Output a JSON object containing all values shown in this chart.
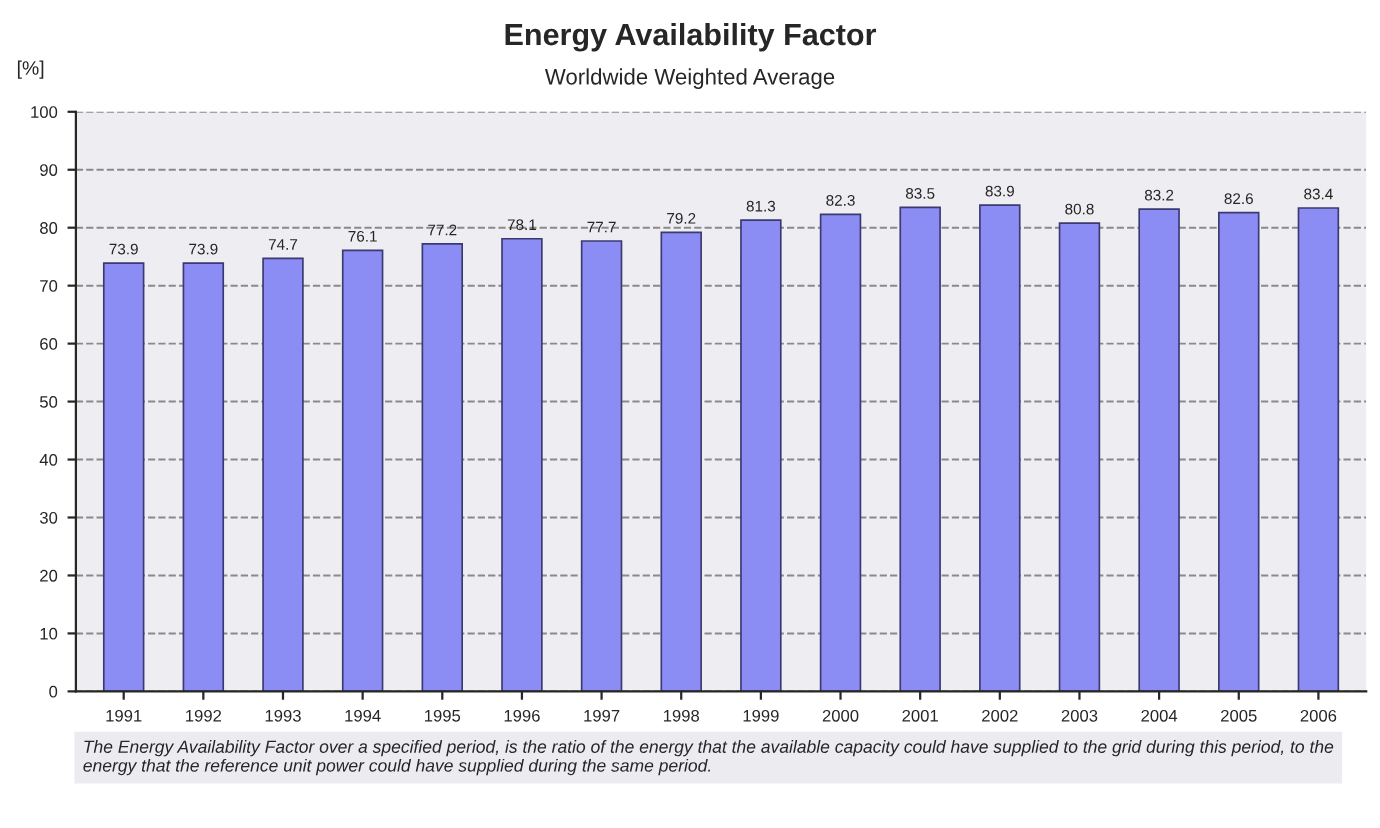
{
  "chart_data": {
    "type": "bar",
    "title": "Energy Availability Factor",
    "subtitle": "Worldwide Weighted Average",
    "ylabel": "[%]",
    "categories": [
      "1991",
      "1992",
      "1993",
      "1994",
      "1995",
      "1996",
      "1997",
      "1998",
      "1999",
      "2000",
      "2001",
      "2002",
      "2003",
      "2004",
      "2005",
      "2006"
    ],
    "values": [
      73.9,
      73.9,
      74.7,
      76.1,
      77.2,
      78.1,
      77.7,
      79.2,
      81.3,
      82.3,
      83.5,
      83.9,
      80.8,
      83.2,
      82.6,
      83.4
    ],
    "color": "#8c8cf5",
    "data_labels": true,
    "ylim": [
      0,
      100
    ],
    "yticks": [
      0,
      10,
      20,
      30,
      40,
      50,
      60,
      70,
      80,
      90,
      100
    ],
    "grid": "y",
    "annotations": [
      "The Energy Availability Factor over a specified period, is the ratio of the energy that the available capacity could have supplied to the grid during this period, to the energy that the reference unit power could have supplied during the same period."
    ]
  }
}
